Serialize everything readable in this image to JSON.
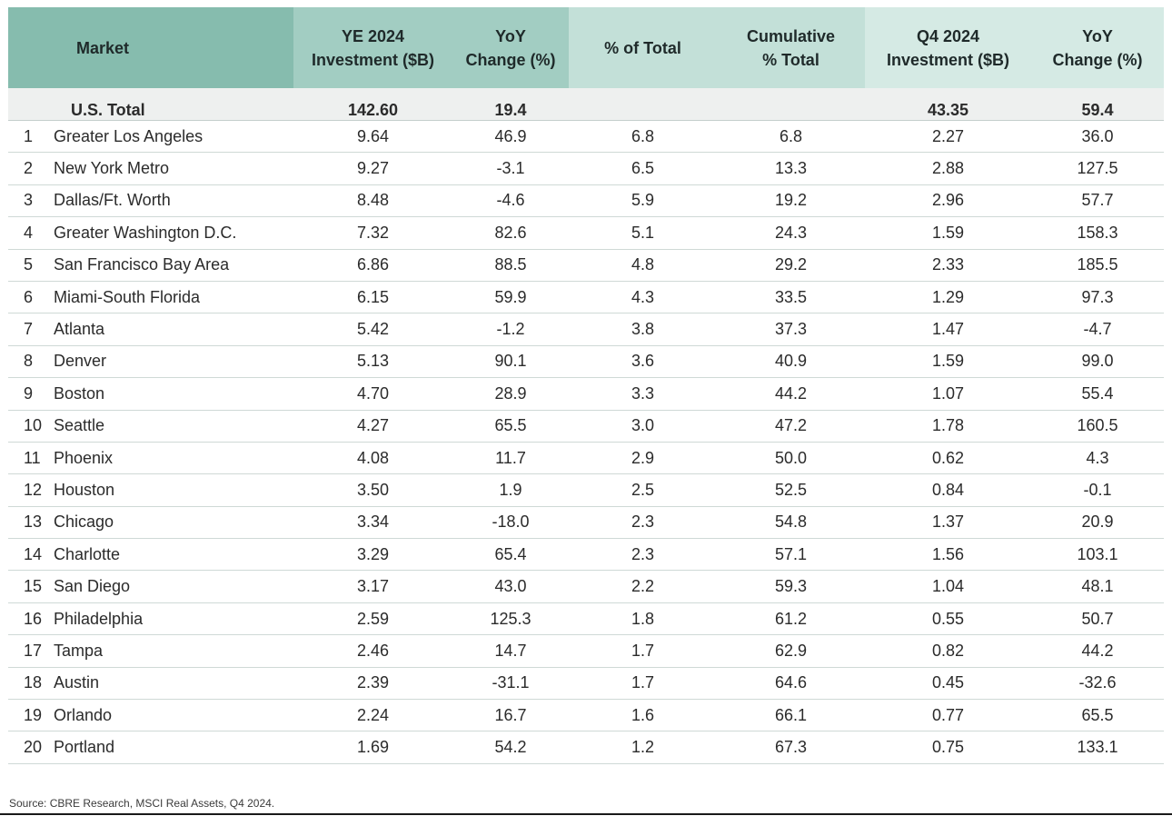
{
  "chart_data": {
    "type": "table",
    "columns": [
      {
        "key": "market",
        "label": "Market"
      },
      {
        "key": "ye2024",
        "label": "YE 2024\nInvestment ($B)"
      },
      {
        "key": "yoy_ye",
        "label": "YoY\nChange (%)"
      },
      {
        "key": "pct_total",
        "label": "% of Total"
      },
      {
        "key": "cum_total",
        "label": "Cumulative\n% Total"
      },
      {
        "key": "q42024",
        "label": "Q4 2024\nInvestment ($B)"
      },
      {
        "key": "yoy_q4",
        "label": "YoY\nChange (%)"
      }
    ],
    "total": {
      "market": "U.S. Total",
      "ye2024": "142.60",
      "yoy_ye": "19.4",
      "pct_total": "",
      "cum_total": "",
      "q42024": "43.35",
      "yoy_q4": "59.4"
    },
    "rows": [
      {
        "rank": "1",
        "market": "Greater Los Angeles",
        "ye2024": "9.64",
        "yoy_ye": "46.9",
        "pct_total": "6.8",
        "cum_total": "6.8",
        "q42024": "2.27",
        "yoy_q4": "36.0"
      },
      {
        "rank": "2",
        "market": "New York Metro",
        "ye2024": "9.27",
        "yoy_ye": "-3.1",
        "pct_total": "6.5",
        "cum_total": "13.3",
        "q42024": "2.88",
        "yoy_q4": "127.5"
      },
      {
        "rank": "3",
        "market": "Dallas/Ft. Worth",
        "ye2024": "8.48",
        "yoy_ye": "-4.6",
        "pct_total": "5.9",
        "cum_total": "19.2",
        "q42024": "2.96",
        "yoy_q4": "57.7"
      },
      {
        "rank": "4",
        "market": "Greater Washington D.C.",
        "ye2024": "7.32",
        "yoy_ye": "82.6",
        "pct_total": "5.1",
        "cum_total": "24.3",
        "q42024": "1.59",
        "yoy_q4": "158.3"
      },
      {
        "rank": "5",
        "market": "San Francisco Bay Area",
        "ye2024": "6.86",
        "yoy_ye": "88.5",
        "pct_total": "4.8",
        "cum_total": "29.2",
        "q42024": "2.33",
        "yoy_q4": "185.5"
      },
      {
        "rank": "6",
        "market": "Miami-South Florida",
        "ye2024": "6.15",
        "yoy_ye": "59.9",
        "pct_total": "4.3",
        "cum_total": "33.5",
        "q42024": "1.29",
        "yoy_q4": "97.3"
      },
      {
        "rank": "7",
        "market": "Atlanta",
        "ye2024": "5.42",
        "yoy_ye": "-1.2",
        "pct_total": "3.8",
        "cum_total": "37.3",
        "q42024": "1.47",
        "yoy_q4": "-4.7"
      },
      {
        "rank": "8",
        "market": "Denver",
        "ye2024": "5.13",
        "yoy_ye": "90.1",
        "pct_total": "3.6",
        "cum_total": "40.9",
        "q42024": "1.59",
        "yoy_q4": "99.0"
      },
      {
        "rank": "9",
        "market": "Boston",
        "ye2024": "4.70",
        "yoy_ye": "28.9",
        "pct_total": "3.3",
        "cum_total": "44.2",
        "q42024": "1.07",
        "yoy_q4": "55.4"
      },
      {
        "rank": "10",
        "market": "Seattle",
        "ye2024": "4.27",
        "yoy_ye": "65.5",
        "pct_total": "3.0",
        "cum_total": "47.2",
        "q42024": "1.78",
        "yoy_q4": "160.5"
      },
      {
        "rank": "11",
        "market": "Phoenix",
        "ye2024": "4.08",
        "yoy_ye": "11.7",
        "pct_total": "2.9",
        "cum_total": "50.0",
        "q42024": "0.62",
        "yoy_q4": "4.3"
      },
      {
        "rank": "12",
        "market": "Houston",
        "ye2024": "3.50",
        "yoy_ye": "1.9",
        "pct_total": "2.5",
        "cum_total": "52.5",
        "q42024": "0.84",
        "yoy_q4": "-0.1"
      },
      {
        "rank": "13",
        "market": "Chicago",
        "ye2024": "3.34",
        "yoy_ye": "-18.0",
        "pct_total": "2.3",
        "cum_total": "54.8",
        "q42024": "1.37",
        "yoy_q4": "20.9"
      },
      {
        "rank": "14",
        "market": "Charlotte",
        "ye2024": "3.29",
        "yoy_ye": "65.4",
        "pct_total": "2.3",
        "cum_total": "57.1",
        "q42024": "1.56",
        "yoy_q4": "103.1"
      },
      {
        "rank": "15",
        "market": "San Diego",
        "ye2024": "3.17",
        "yoy_ye": "43.0",
        "pct_total": "2.2",
        "cum_total": "59.3",
        "q42024": "1.04",
        "yoy_q4": "48.1"
      },
      {
        "rank": "16",
        "market": "Philadelphia",
        "ye2024": "2.59",
        "yoy_ye": "125.3",
        "pct_total": "1.8",
        "cum_total": "61.2",
        "q42024": "0.55",
        "yoy_q4": "50.7"
      },
      {
        "rank": "17",
        "market": "Tampa",
        "ye2024": "2.46",
        "yoy_ye": "14.7",
        "pct_total": "1.7",
        "cum_total": "62.9",
        "q42024": "0.82",
        "yoy_q4": "44.2"
      },
      {
        "rank": "18",
        "market": "Austin",
        "ye2024": "2.39",
        "yoy_ye": "-31.1",
        "pct_total": "1.7",
        "cum_total": "64.6",
        "q42024": "0.45",
        "yoy_q4": "-32.6"
      },
      {
        "rank": "19",
        "market": "Orlando",
        "ye2024": "2.24",
        "yoy_ye": "16.7",
        "pct_total": "1.6",
        "cum_total": "66.1",
        "q42024": "0.77",
        "yoy_q4": "65.5"
      },
      {
        "rank": "20",
        "market": "Portland",
        "ye2024": "1.69",
        "yoy_ye": "54.2",
        "pct_total": "1.2",
        "cum_total": "67.3",
        "q42024": "0.75",
        "yoy_q4": "133.1"
      }
    ]
  },
  "colors": {
    "header_market": "#86bcae",
    "header_ye": "#a2cdc2",
    "header_share": "#c3e0d8",
    "header_q4": "#d5eae4",
    "total_row_bg": "#eef0ef",
    "row_rule": "#cfd9d6"
  },
  "source": "Source: CBRE Research, MSCI Real Assets, Q4 2024."
}
